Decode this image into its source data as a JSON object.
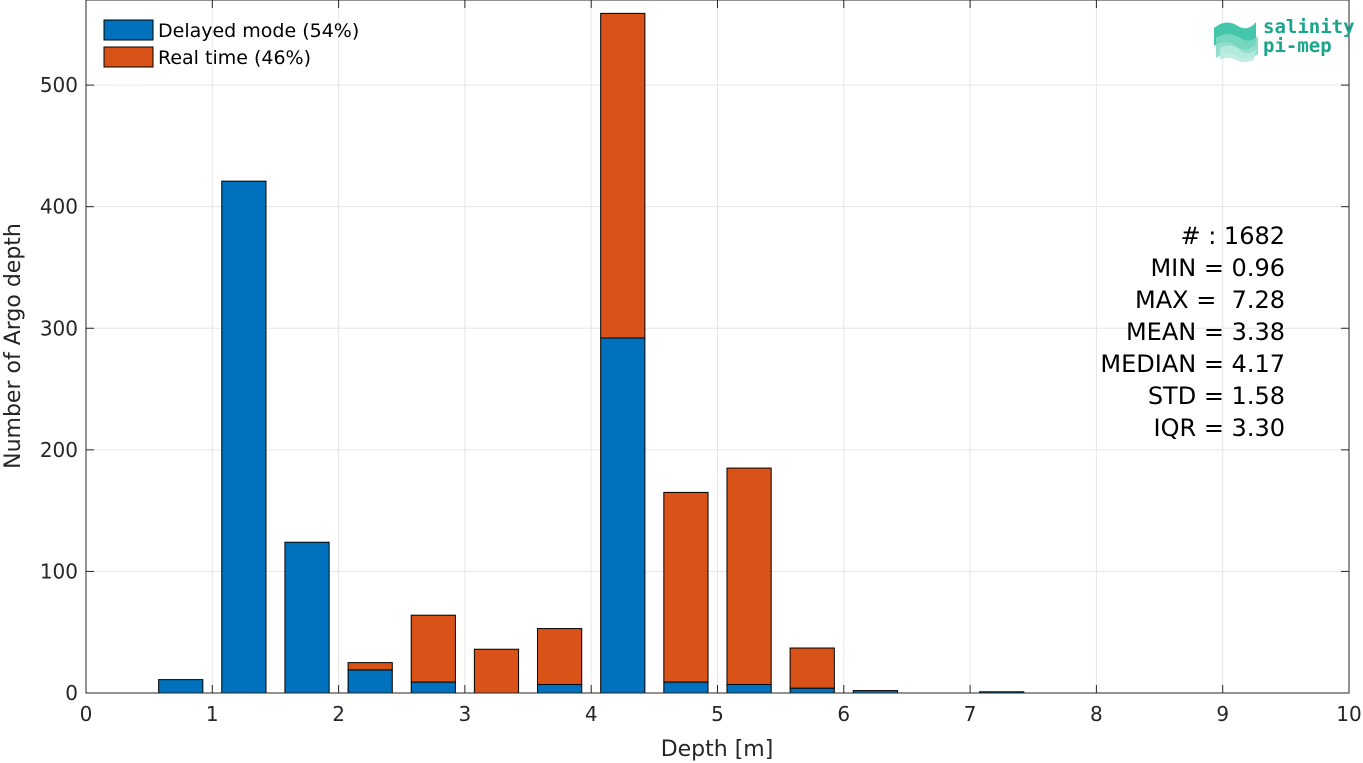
{
  "chart_data": {
    "type": "bar",
    "stacked": true,
    "xlabel": "Depth [m]",
    "ylabel": "Number of Argo depth",
    "xlim": [
      0,
      10
    ],
    "ylim": [
      0,
      570
    ],
    "xticks": [
      "0",
      "1",
      "2",
      "3",
      "4",
      "5",
      "6",
      "7",
      "8",
      "9",
      "10"
    ],
    "yticks": [
      "0",
      "100",
      "200",
      "300",
      "400",
      "500"
    ],
    "grid": true,
    "legend_position": "top-left",
    "bin_centers": [
      0.75,
      1.25,
      1.75,
      2.25,
      2.75,
      3.25,
      3.75,
      4.25,
      4.75,
      5.25,
      5.75,
      6.25,
      6.75,
      7.25,
      7.75,
      8.25,
      8.75,
      9.25
    ],
    "series": [
      {
        "name": "Delayed mode (54%)",
        "color": "#0072bd",
        "values": [
          11,
          421,
          124,
          19,
          9,
          0,
          7,
          292,
          9,
          7,
          4,
          2,
          0,
          1,
          0,
          0,
          0,
          0
        ]
      },
      {
        "name": "Real time (46%)",
        "color": "#d95319",
        "values": [
          0,
          0,
          0,
          6,
          55,
          36,
          46,
          267,
          156,
          178,
          33,
          0,
          0,
          0,
          0,
          0,
          0,
          0
        ]
      }
    ]
  },
  "stats": [
    "# : 1682",
    "MIN = 0.96",
    "MAX =  7.28",
    "MEAN = 3.38",
    "MEDIAN = 4.17",
    "STD = 1.58",
    "IQR = 3.30"
  ],
  "logo": {
    "line1": "salinity",
    "line2": "pi-mep",
    "color": "#1aa58c"
  }
}
